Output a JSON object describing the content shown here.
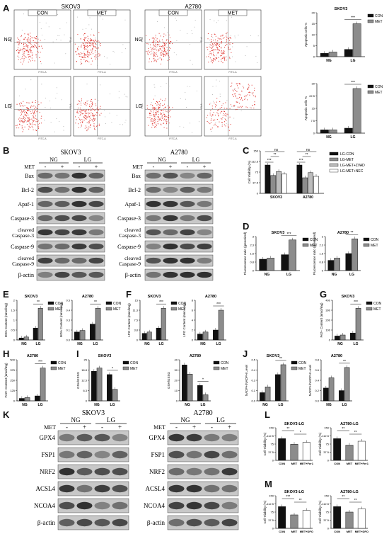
{
  "panels": {
    "A": "A",
    "B": "B",
    "C": "C",
    "D": "D",
    "E": "E",
    "F": "F",
    "G": "G",
    "H": "H",
    "I": "I",
    "J": "J",
    "K": "K",
    "L": "L",
    "M": "M"
  },
  "flow": {
    "cell_lines": [
      "SKOV3",
      "A2780"
    ],
    "conditions": [
      "CON",
      "MET"
    ],
    "rows": [
      "NG",
      "LG"
    ],
    "x_axis": "FITC-A",
    "y_axis": "PI-A"
  },
  "labels": {
    "con": "CON",
    "met": "MET",
    "ng": "NG",
    "lg": "LG",
    "skov3": "SKOV3",
    "a2780": "A2780",
    "met_row": "MET",
    "minus": "-",
    "plus": "+",
    "beta_actin": "β-actin",
    "sig3": "***",
    "sig2": "**",
    "sig1": "*",
    "ns": "ns"
  },
  "western_B": {
    "bands": [
      "Bax",
      "Bcl-2",
      "Apaf-1",
      "Caspase-3",
      "cleaved Caspase-3",
      "Caspase-9",
      "cleaved Caspase-9",
      "β-actin"
    ]
  },
  "western_K": {
    "bands": [
      "GPX4",
      "FSP1",
      "NRF2",
      "ACSL4",
      "NCOA4",
      "β-actin"
    ]
  },
  "colors": {
    "con": "#111111",
    "met": "#8c8c8c",
    "zvad": "#bdbdbd",
    "nec": "#ffffff",
    "dot": "#e0312b"
  },
  "chart_data": [
    {
      "id": "A-top",
      "type": "bar",
      "title": "SKOV3",
      "ylabel": "Apoptotic cells %",
      "categories": [
        "NG",
        "LG"
      ],
      "series": [
        {
          "name": "CON",
          "values": [
            1.5,
            3.3
          ]
        },
        {
          "name": "MET",
          "values": [
            2.1,
            15
          ]
        }
      ],
      "ylim": [
        0,
        20
      ]
    },
    {
      "id": "A-bottom",
      "type": "bar",
      "title": "",
      "ylabel": "Apoptotic cells %",
      "categories": [
        "NG",
        "LG"
      ],
      "series": [
        {
          "name": "CON",
          "values": [
            2,
            3
          ]
        },
        {
          "name": "MET",
          "values": [
            2,
            27
          ]
        }
      ],
      "ylim": [
        0,
        30
      ]
    },
    {
      "id": "C",
      "type": "bar",
      "ylabel": "Cell Viability (%)",
      "categories": [
        "SKOV3",
        "A2780"
      ],
      "series": [
        {
          "name": "LG-CON",
          "values": [
            100,
            100
          ]
        },
        {
          "name": "LG-MET",
          "values": [
            63,
            55
          ]
        },
        {
          "name": "LG-MET+ZVAD",
          "values": [
            77,
            73
          ]
        },
        {
          "name": "LG-MET+NEC",
          "values": [
            68,
            60
          ]
        }
      ],
      "ylim": [
        0,
        150
      ]
    },
    {
      "id": "D-skov3",
      "type": "bar",
      "title": "SKOV3",
      "ylabel": "Fluorescence ratio (green/red)",
      "categories": [
        "NG",
        "LG"
      ],
      "series": [
        {
          "name": "CON",
          "values": [
            1.0,
            1.4
          ]
        },
        {
          "name": "MET",
          "values": [
            1.1,
            2.7
          ]
        }
      ],
      "ylim": [
        0,
        3
      ]
    },
    {
      "id": "D-a2780",
      "type": "bar",
      "title": "A2780",
      "ylabel": "Fluorescence ratio (green/red)",
      "categories": [
        "NG",
        "LG"
      ],
      "series": [
        {
          "name": "CON",
          "values": [
            0.9,
            1.5
          ]
        },
        {
          "name": "MET",
          "values": [
            1.1,
            2.8
          ]
        }
      ],
      "ylim": [
        0,
        3
      ]
    },
    {
      "id": "E-skov3",
      "type": "bar",
      "title": "SKOV3",
      "ylabel": "MDA Content (nmol/mg)",
      "categories": [
        "NG",
        "LG"
      ],
      "series": [
        {
          "name": "CON",
          "values": [
            0.1,
            0.6
          ]
        },
        {
          "name": "MET",
          "values": [
            0.15,
            1.6
          ]
        }
      ],
      "ylim": [
        0,
        2
      ]
    },
    {
      "id": "E-a2780",
      "type": "bar",
      "title": "A2780",
      "ylabel": "MDA Content (nmol/mg)",
      "categories": [
        "NG",
        "LG"
      ],
      "series": [
        {
          "name": "CON",
          "values": [
            0.1,
            0.2
          ]
        },
        {
          "name": "MET",
          "values": [
            0.12,
            0.4
          ]
        }
      ],
      "ylim": [
        0,
        0.5
      ]
    },
    {
      "id": "F-skov3",
      "type": "bar",
      "title": "SKOV3",
      "ylabel": "LPO Content (nmol/mg)",
      "categories": [
        "NG",
        "LG"
      ],
      "series": [
        {
          "name": "CON",
          "values": [
            2.5,
            4.5
          ]
        },
        {
          "name": "MET",
          "values": [
            3,
            12
          ]
        }
      ],
      "ylim": [
        0,
        15
      ]
    },
    {
      "id": "F-a2780",
      "type": "bar",
      "title": "A2780",
      "ylabel": "LPO Content (nmol/mg)",
      "categories": [
        "NG",
        "LG"
      ],
      "series": [
        {
          "name": "CON",
          "values": [
            1.2,
            2
          ]
        },
        {
          "name": "MET",
          "values": [
            1.6,
            6
          ]
        }
      ],
      "ylim": [
        0,
        8
      ]
    },
    {
      "id": "G",
      "type": "bar",
      "title": "SKOV3",
      "ylabel": "Fe2+ Content (nmol/mg)",
      "categories": [
        "NG",
        "LG"
      ],
      "series": [
        {
          "name": "CON",
          "values": [
            40,
            70
          ]
        },
        {
          "name": "MET",
          "values": [
            50,
            320
          ]
        }
      ],
      "ylim": [
        0,
        400
      ]
    },
    {
      "id": "H",
      "type": "bar",
      "title": "A2780",
      "ylabel": "Fe2+ Content (nmol/mg)",
      "categories": [
        "NG",
        "LG"
      ],
      "series": [
        {
          "name": "CON",
          "values": [
            30,
            60
          ]
        },
        {
          "name": "MET",
          "values": [
            40,
            400
          ]
        }
      ],
      "ylim": [
        0,
        500
      ]
    },
    {
      "id": "I-skov3",
      "type": "bar",
      "title": "SKOV3",
      "ylabel": "GSH/GSSG",
      "categories": [
        "NG",
        "LG"
      ],
      "series": [
        {
          "name": "CON",
          "values": [
            18,
            16
          ]
        },
        {
          "name": "MET",
          "values": [
            20,
            7
          ]
        }
      ],
      "ylim": [
        0,
        25
      ]
    },
    {
      "id": "I-a2780",
      "type": "bar",
      "title": "A2780",
      "ylabel": "GSH/GSSG",
      "categories": [
        "NG",
        "LG"
      ],
      "series": [
        {
          "name": "CON",
          "values": [
            35,
            15
          ]
        },
        {
          "name": "MET",
          "values": [
            26,
            6
          ]
        }
      ],
      "ylim": [
        0,
        40
      ]
    },
    {
      "id": "J-skov3",
      "type": "bar",
      "title": "SKOV3",
      "ylabel": "NADP+/NADPH Level",
      "categories": [
        "NG",
        "LG"
      ],
      "series": [
        {
          "name": "CON",
          "values": [
            0.1,
            0.32
          ]
        },
        {
          "name": "MET",
          "values": [
            0.17,
            0.44
          ]
        }
      ],
      "ylim": [
        0,
        0.5
      ]
    },
    {
      "id": "J-a2780",
      "type": "bar",
      "title": "A2780",
      "ylabel": "NADP+/NADPH Level",
      "categories": [
        "NG",
        "LG"
      ],
      "series": [
        {
          "name": "CON",
          "values": [
            0.25,
            0.2
          ]
        },
        {
          "name": "MET",
          "values": [
            0.45,
            0.65
          ]
        }
      ],
      "ylim": [
        0,
        0.8
      ]
    },
    {
      "id": "L-skov3",
      "type": "bar",
      "title": "SKOV3-LG",
      "ylabel": "Cell Viability (%)",
      "categories": [
        "CON",
        "MET",
        "MET+Fer1"
      ],
      "values": [
        100,
        74,
        83
      ],
      "ylim": [
        0,
        150
      ]
    },
    {
      "id": "L-a2780",
      "type": "bar",
      "title": "A2780-LG",
      "ylabel": "Cell Viability (%)",
      "categories": [
        "CON",
        "MET",
        "MET+Fer1"
      ],
      "values": [
        100,
        70,
        88
      ],
      "ylim": [
        0,
        150
      ]
    },
    {
      "id": "M-skov3",
      "type": "bar",
      "title": "SKOV3-LG",
      "ylabel": "Cell Viability (%)",
      "categories": [
        "CON",
        "MET",
        "MET+DFO"
      ],
      "values": [
        100,
        62,
        83
      ],
      "ylim": [
        0,
        150
      ]
    },
    {
      "id": "M-a2780",
      "type": "bar",
      "title": "A2780-LG",
      "ylabel": "Cell Viability (%)",
      "categories": [
        "CON",
        "MET",
        "MET+DFO"
      ],
      "values": [
        100,
        75,
        90
      ],
      "ylim": [
        0,
        150
      ]
    }
  ]
}
